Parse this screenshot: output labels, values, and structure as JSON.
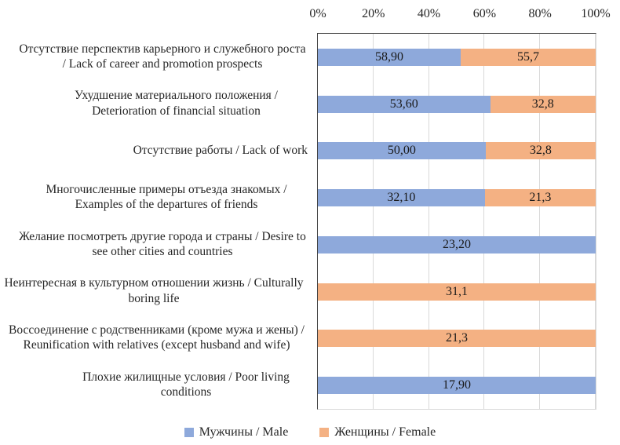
{
  "chart_data": {
    "type": "bar",
    "subtype": "horizontal-100-stacked",
    "title": "",
    "xlabel": "",
    "ylabel": "",
    "axis_position": "top",
    "grid": true,
    "legend_position": "bottom",
    "x_axis": {
      "ticks": [
        "0%",
        "20%",
        "40%",
        "60%",
        "80%",
        "100%"
      ],
      "range": [
        0,
        100
      ]
    },
    "categories": [
      "Отсутствие перспектив карьерного и служебного роста / Lack of career and promotion prospects",
      "Ухудшение материального положения / Deterioration of financial situation",
      "Отсутствие работы / Lack of work",
      "Многочисленные примеры отъезда знакомых / Examples of the departures of friends",
      "Желание посмотреть другие города и страны / Desire to see other cities and countries",
      "Неинтересная в культурном отношении жизнь / Culturally boring life",
      "Воссоединение с родственниками (кроме мужа и жены) / Reunification with relatives (except husband and wife)",
      "Плохие жилищные условия / Poor living conditions"
    ],
    "series": [
      {
        "name": "Мужчины / Male",
        "color": "#8EA9DB",
        "values": [
          58.9,
          53.6,
          50.0,
          32.1,
          23.2,
          null,
          null,
          17.9
        ],
        "labels": [
          "58,90",
          "53,60",
          "50,00",
          "32,10",
          "23,20",
          null,
          null,
          "17,90"
        ]
      },
      {
        "name": "Женщины / Female",
        "color": "#F4B183",
        "values": [
          55.7,
          32.8,
          32.8,
          21.3,
          null,
          31.1,
          21.3,
          null
        ],
        "labels": [
          "55,7",
          "32,8",
          "32,8",
          "21,3",
          null,
          "31,1",
          "21,3",
          null
        ]
      }
    ]
  },
  "colors": {
    "male": "#8EA9DB",
    "female": "#F4B183",
    "gridline": "#D9D9D9",
    "axis_line": "#404040",
    "text": "#262626"
  }
}
